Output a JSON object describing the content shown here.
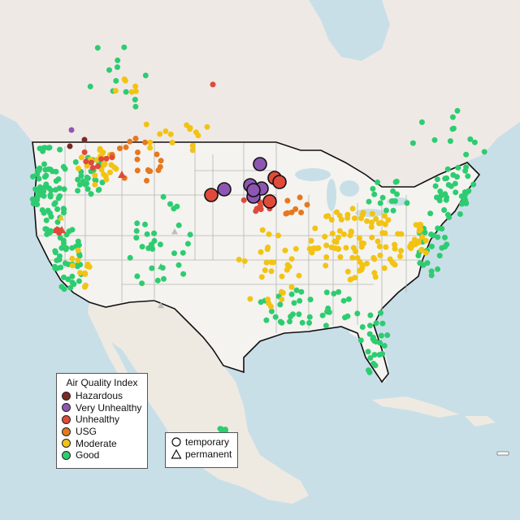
{
  "legend": {
    "title": "Air Quality Index",
    "items": [
      {
        "label": "Hazardous",
        "color": "#7a2a26"
      },
      {
        "label": "Very Unhealthy",
        "color": "#8e56b3"
      },
      {
        "label": "Unhealthy",
        "color": "#e04a3a"
      },
      {
        "label": "USG",
        "color": "#e6781e"
      },
      {
        "label": "Moderate",
        "color": "#f2c314"
      },
      {
        "label": "Good",
        "color": "#2ecc71"
      }
    ]
  },
  "monitor_type_legend": {
    "items": [
      {
        "label": "temporary",
        "icon": "circle-icon"
      },
      {
        "label": "permanent",
        "icon": "triangle-icon"
      }
    ]
  },
  "colors": {
    "water": "#c9dfe8",
    "land": "#f0efe9",
    "us_land": "#f4f3ef",
    "mexico_land": "#eeeae2",
    "canada_land": "#efe9e6",
    "border": "#111111",
    "state_lines": "#b4b4b4",
    "good": "#2ecc71",
    "moderate": "#f2c314",
    "usg": "#e6781e",
    "unhealthy": "#e04a3a",
    "very_unhealthy": "#8e56b3",
    "hazardous": "#7a2a26",
    "unknown": "#bdbdbd"
  }
}
